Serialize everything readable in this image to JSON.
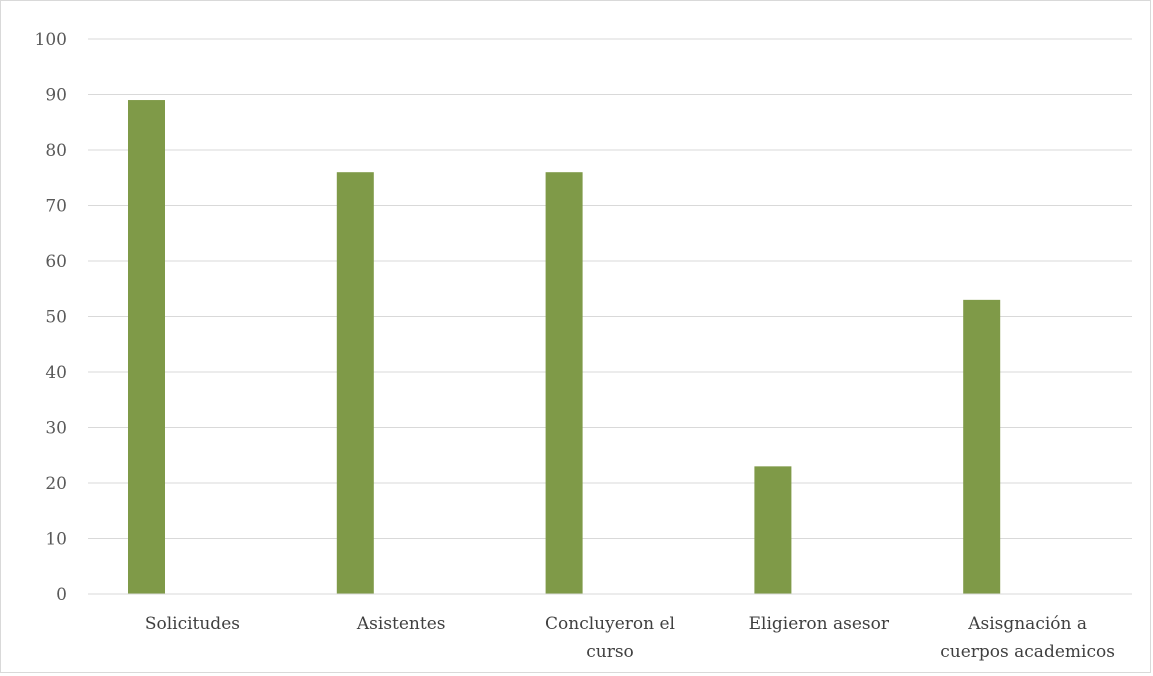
{
  "chart_data": {
    "type": "bar",
    "categories": [
      [
        "Solicitudes"
      ],
      [
        "Asistentes"
      ],
      [
        "Concluyeron el",
        "curso"
      ],
      [
        "Eligieron asesor"
      ],
      [
        "Asisgnación a",
        "cuerpos academicos"
      ]
    ],
    "values": [
      89,
      76,
      76,
      23,
      53
    ],
    "ylim": [
      0,
      100
    ],
    "yticks": [
      0,
      10,
      20,
      30,
      40,
      50,
      60,
      70,
      80,
      90,
      100
    ],
    "grid": true,
    "bar_color": "#7f9a48",
    "title": "",
    "xlabel": "",
    "ylabel": ""
  }
}
